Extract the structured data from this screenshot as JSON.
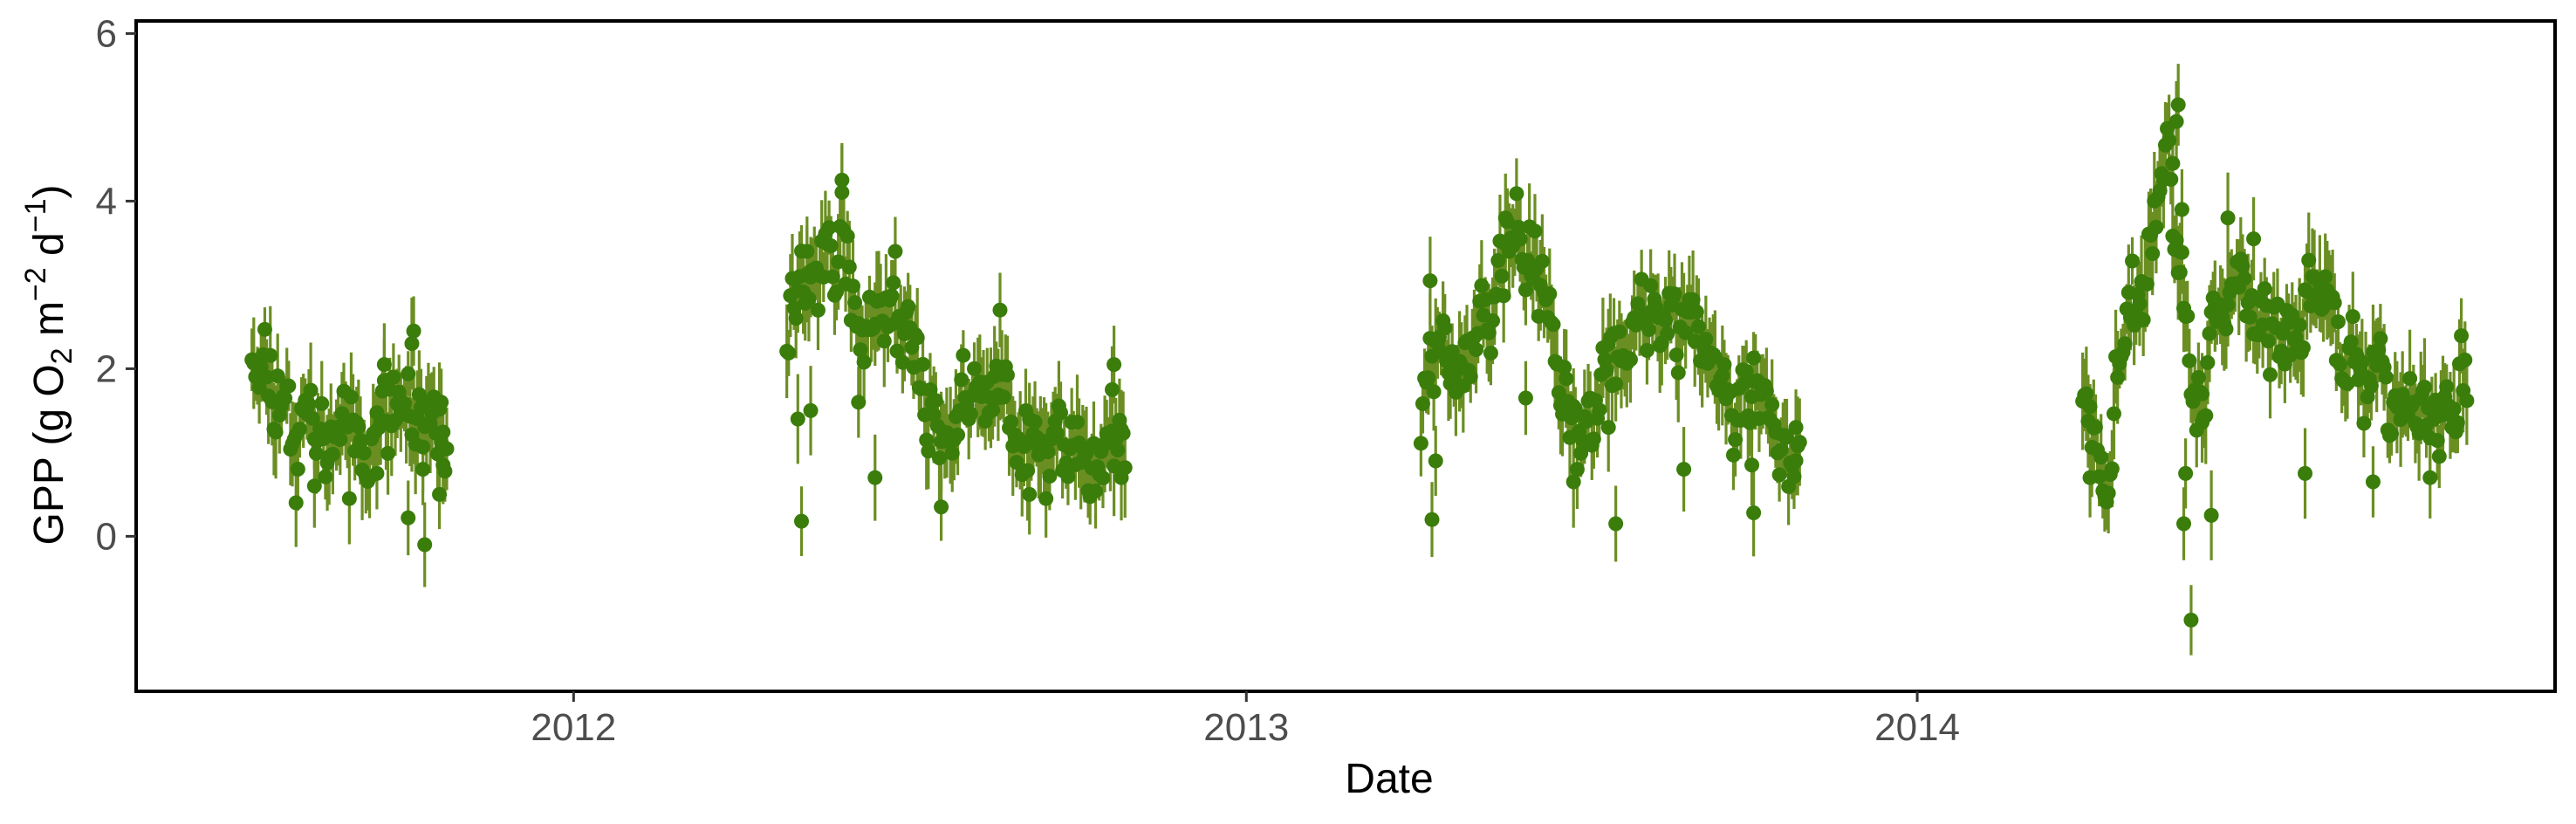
{
  "chart_data": {
    "type": "scatter",
    "title": "",
    "xlabel": "Date",
    "ylabel": {
      "prefix": "GPP (g  O",
      "o2_sub": "2",
      "m": " m",
      "m_sup": "−2",
      "d": " d",
      "d_sup": "−1",
      "suffix": ")"
    },
    "x_type": "date",
    "xlim": [
      "2011-05-08",
      "2014-12-14"
    ],
    "ylim": [
      -1.85,
      6.15
    ],
    "x_ticks": [
      {
        "date": "2012-01-01",
        "label": "2012"
      },
      {
        "date": "2013-01-01",
        "label": "2013"
      },
      {
        "date": "2014-01-01",
        "label": "2014"
      }
    ],
    "y_ticks": [
      {
        "value": 0,
        "label": "0"
      },
      {
        "value": 2,
        "label": "2"
      },
      {
        "value": 4,
        "label": "4"
      },
      {
        "value": 6,
        "label": "6"
      }
    ],
    "minor_x_grid": [
      "2011-07-02",
      "2012-07-02",
      "2013-07-02",
      "2014-07-02"
    ],
    "grid": false,
    "legend": "none",
    "point_color": "#3a7d0a",
    "errorbar_color": "#6b8e23",
    "background": "#ffffff",
    "panel_border": "#000000",
    "seasons": [
      {
        "start": "2011-07-10",
        "end": "2011-10-24",
        "seed": 11,
        "anchors": [
          [
            0,
            2.4
          ],
          [
            0.08,
            2.1
          ],
          [
            0.2,
            1.5
          ],
          [
            0.35,
            1.3
          ],
          [
            0.5,
            1.5
          ],
          [
            0.6,
            1.3
          ],
          [
            0.75,
            1.6
          ],
          [
            0.85,
            1.4
          ],
          [
            1,
            1.1
          ]
        ],
        "outliers": [
          [
            "2011-08-03",
            0.4
          ],
          [
            "2011-08-13",
            0.6
          ],
          [
            "2011-09-01",
            0.45
          ],
          [
            "2011-09-16",
            0.75
          ],
          [
            "2011-10-03",
            0.22
          ],
          [
            "2011-10-11",
            0.8
          ],
          [
            "2011-10-12",
            -0.1
          ],
          [
            "2011-10-20",
            0.5
          ],
          [
            "2011-10-21",
            1.6
          ],
          [
            "2011-10-22",
            0.85
          ],
          [
            "2011-09-20",
            2.05
          ],
          [
            "2011-10-06",
            2.45
          ],
          [
            "2011-10-05",
            2.3
          ]
        ]
      },
      {
        "start": "2012-04-26",
        "end": "2012-10-27",
        "seed": 22,
        "anchors": [
          [
            0,
            2.5
          ],
          [
            0.08,
            3.0
          ],
          [
            0.16,
            3.6
          ],
          [
            0.22,
            2.4
          ],
          [
            0.3,
            3.1
          ],
          [
            0.38,
            2.3
          ],
          [
            0.45,
            1.4
          ],
          [
            0.55,
            1.5
          ],
          [
            0.65,
            1.7
          ],
          [
            0.75,
            1.2
          ],
          [
            0.85,
            1.0
          ],
          [
            1,
            0.9
          ]
        ],
        "outliers": [
          [
            "2012-05-04",
            0.18
          ],
          [
            "2012-05-02",
            1.4
          ],
          [
            "2012-05-07",
            3.4
          ],
          [
            "2012-05-09",
            1.5
          ],
          [
            "2012-05-26",
            4.25
          ],
          [
            "2012-06-04",
            1.6
          ],
          [
            "2012-06-13",
            0.7
          ],
          [
            "2012-06-24",
            3.4
          ],
          [
            "2012-07-19",
            0.35
          ],
          [
            "2012-08-20",
            2.7
          ],
          [
            "2012-09-05",
            0.5
          ],
          [
            "2012-09-14",
            0.45
          ],
          [
            "2012-10-21",
            2.05
          ],
          [
            "2012-10-20",
            1.75
          ],
          [
            "2012-10-25",
            0.7
          ]
        ]
      },
      {
        "start": "2013-04-06",
        "end": "2013-10-29",
        "seed": 33,
        "anchors": [
          [
            0,
            1.4
          ],
          [
            0.07,
            2.5
          ],
          [
            0.14,
            2.2
          ],
          [
            0.2,
            3.0
          ],
          [
            0.26,
            3.8
          ],
          [
            0.33,
            2.8
          ],
          [
            0.42,
            1.4
          ],
          [
            0.5,
            2.0
          ],
          [
            0.6,
            2.5
          ],
          [
            0.7,
            2.4
          ],
          [
            0.8,
            1.9
          ],
          [
            0.9,
            1.6
          ],
          [
            1,
            1.0
          ]
        ],
        "outliers": [
          [
            "2013-04-12",
            0.2
          ],
          [
            "2013-04-14",
            0.9
          ],
          [
            "2013-04-11",
            3.05
          ],
          [
            "2013-05-22",
            3.8
          ],
          [
            "2013-06-02",
            1.65
          ],
          [
            "2013-06-28",
            0.65
          ],
          [
            "2013-07-21",
            0.15
          ],
          [
            "2013-07-17",
            1.3
          ],
          [
            "2013-08-27",
            0.8
          ],
          [
            "2013-10-04",
            0.28
          ],
          [
            "2013-10-03",
            0.85
          ],
          [
            "2013-10-27",
            1.3
          ]
        ]
      },
      {
        "start": "2014-04-01",
        "end": "2014-10-27",
        "seed": 44,
        "anchors": [
          [
            0,
            1.9
          ],
          [
            0.06,
            1.0
          ],
          [
            0.12,
            2.6
          ],
          [
            0.18,
            3.3
          ],
          [
            0.22,
            4.6
          ],
          [
            0.26,
            3.0
          ],
          [
            0.3,
            1.5
          ],
          [
            0.38,
            3.0
          ],
          [
            0.45,
            2.8
          ],
          [
            0.52,
            2.4
          ],
          [
            0.6,
            2.9
          ],
          [
            0.7,
            2.0
          ],
          [
            0.8,
            1.6
          ],
          [
            0.9,
            1.3
          ],
          [
            1,
            1.9
          ]
        ],
        "outliers": [
          [
            "2014-05-23",
            5.15
          ],
          [
            "2014-05-22",
            4.95
          ],
          [
            "2014-05-20",
            4.45
          ],
          [
            "2014-05-25",
            3.9
          ],
          [
            "2014-05-24",
            3.15
          ],
          [
            "2014-05-26",
            0.15
          ],
          [
            "2014-05-27",
            0.75
          ],
          [
            "2014-05-30",
            -1.0
          ],
          [
            "2014-06-05",
            1.7
          ],
          [
            "2014-06-10",
            0.25
          ],
          [
            "2014-06-19",
            3.8
          ],
          [
            "2014-07-03",
            3.55
          ],
          [
            "2014-07-31",
            0.75
          ],
          [
            "2014-09-06",
            0.65
          ],
          [
            "2014-10-07",
            0.7
          ],
          [
            "2014-04-05",
            0.7
          ]
        ]
      }
    ]
  }
}
